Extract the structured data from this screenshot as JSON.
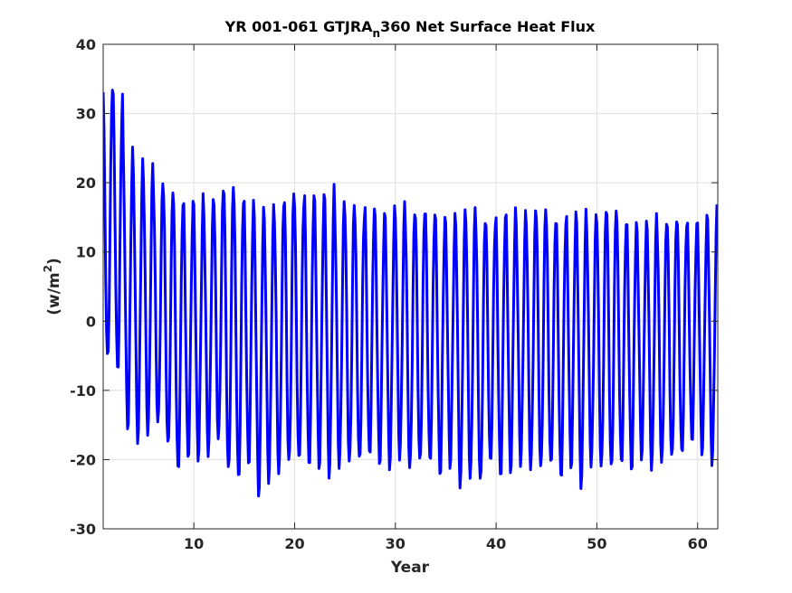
{
  "chart_data": {
    "type": "line",
    "title": {
      "prefix": "YR 001-061 GTJRA",
      "subscript": "n",
      "suffix": "360 Net Surface Heat Flux"
    },
    "xlabel": "Year",
    "ylabel": {
      "prefix": "(w/m",
      "superscript": "2",
      "suffix": ")"
    },
    "xlim": [
      1,
      62
    ],
    "ylim": [
      -30,
      40
    ],
    "xticks": [
      10,
      20,
      30,
      40,
      50,
      60
    ],
    "yticks": [
      -30,
      -20,
      -10,
      0,
      10,
      20,
      30,
      40
    ],
    "grid": true,
    "line_color": "#0000ff",
    "series": [
      {
        "x_start": 1,
        "cycle_length_years": 1,
        "annual_max": [
          34.5,
          33.5,
          25.0,
          22.8,
          22.4,
          20.3,
          19.6,
          17.6,
          17.4,
          17.8,
          17.0,
          19.0,
          20.3,
          18.0,
          17.8,
          16.0,
          16.2,
          16.5,
          19.2,
          17.8,
          18.7,
          18.0,
          19.1,
          17.0,
          17.3,
          15.8,
          17.0,
          15.5,
          16.0,
          16.8,
          15.7,
          16.5,
          16.3,
          15.2,
          15.0,
          15.5,
          16.5,
          15.0,
          14.8,
          15.4,
          16.0,
          15.3,
          15.8,
          16.8,
          15.2,
          14.6,
          15.6,
          15.5,
          15.0,
          16.2,
          17.0,
          14.8,
          14.3,
          13.8,
          15.0,
          14.2,
          15.3,
          14.7,
          14.4,
          14.8,
          16.2
        ],
        "annual_min": [
          -5.8,
          -7.3,
          -15.4,
          -17.0,
          -16.1,
          -15.0,
          -18.4,
          -21.8,
          -19.6,
          -19.6,
          -19.0,
          -17.2,
          -22.0,
          -23.2,
          -20.8,
          -24.8,
          -22.8,
          -22.0,
          -20.8,
          -20.5,
          -21.0,
          -21.0,
          -22.0,
          -21.0,
          -20.8,
          -20.6,
          -19.5,
          -20.5,
          -20.8,
          -19.6,
          -21.5,
          -20.8,
          -20.6,
          -22.2,
          -20.7,
          -23.5,
          -22.8,
          -23.6,
          -20.8,
          -22.5,
          -21.5,
          -20.3,
          -21.3,
          -21.6,
          -21.2,
          -22.8,
          -21.0,
          -23.5,
          -20.7,
          -21.4,
          -21.7,
          -20.8,
          -21.4,
          -19.4,
          -21.0,
          -20.6,
          -20.2,
          -19.5,
          -17.3,
          -18.8,
          -20.2
        ]
      }
    ]
  }
}
